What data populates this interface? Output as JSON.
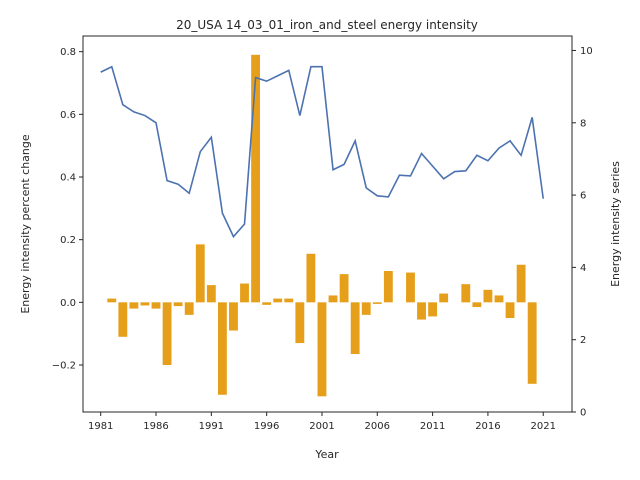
{
  "chart_data": {
    "type": "bar+line",
    "title": "20_USA 14_03_01_iron_and_steel energy intensity",
    "xlabel": "Year",
    "ylabel_left": "Energy intensity percent change",
    "ylabel_right": "Energy intensity series",
    "x": [
      1981,
      1982,
      1983,
      1984,
      1985,
      1986,
      1987,
      1988,
      1989,
      1990,
      1991,
      1992,
      1993,
      1994,
      1995,
      1996,
      1997,
      1998,
      1999,
      2000,
      2001,
      2002,
      2003,
      2004,
      2005,
      2006,
      2007,
      2008,
      2009,
      2010,
      2011,
      2012,
      2013,
      2014,
      2015,
      2016,
      2017,
      2018,
      2019,
      2020,
      2021
    ],
    "xticks": [
      1981,
      1986,
      1991,
      1996,
      2001,
      2006,
      2011,
      2016,
      2021
    ],
    "xlim": [
      1979.4,
      2023.6
    ],
    "bar_series": {
      "axis": "left",
      "color": "#e69f1a",
      "values": [
        0.0,
        0.012,
        -0.11,
        -0.02,
        -0.01,
        -0.02,
        -0.2,
        -0.012,
        -0.04,
        0.185,
        0.055,
        -0.295,
        -0.09,
        0.06,
        0.79,
        -0.008,
        0.012,
        0.012,
        -0.13,
        0.155,
        -0.3,
        0.022,
        0.09,
        -0.165,
        -0.04,
        -0.005,
        0.1,
        0.0,
        0.095,
        -0.055,
        -0.045,
        0.028,
        0.0,
        0.058,
        -0.015,
        0.04,
        0.022,
        -0.05,
        0.12,
        -0.26,
        0.0
      ]
    },
    "line_series": {
      "axis": "right",
      "color": "#4c72b0",
      "values": [
        9.4,
        9.55,
        8.5,
        8.3,
        8.2,
        8.0,
        6.4,
        6.3,
        6.05,
        7.2,
        7.6,
        5.5,
        4.85,
        5.2,
        9.25,
        9.15,
        9.3,
        9.45,
        8.2,
        9.55,
        9.55,
        6.7,
        6.85,
        7.5,
        6.2,
        5.98,
        5.95,
        6.55,
        6.53,
        7.15,
        6.8,
        6.45,
        6.65,
        6.67,
        7.1,
        6.95,
        7.3,
        7.5,
        7.1,
        8.15,
        5.9
      ]
    },
    "ylim_left": [
      -0.35,
      0.85
    ],
    "yticks_left": [
      -0.2,
      0.0,
      0.2,
      0.4,
      0.6,
      0.8
    ],
    "ytick_labels_left": [
      "−0.2",
      "0.0",
      "0.2",
      "0.4",
      "0.6",
      "0.8"
    ],
    "ylim_right": [
      0,
      10.4
    ],
    "yticks_right": [
      0,
      2,
      4,
      6,
      8,
      10
    ],
    "grid": false,
    "legend": "none"
  }
}
